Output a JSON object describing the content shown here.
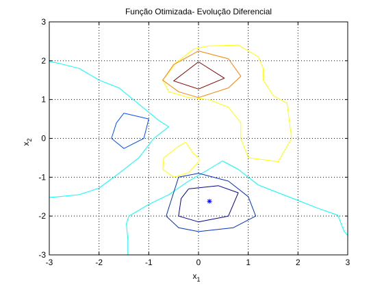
{
  "chart_data": {
    "type": "contour",
    "title": "Função Otimizada- Evolução Diferencial",
    "xlabel_base": "x",
    "xlabel_sub": "1",
    "ylabel_base": "x",
    "ylabel_sub": "2",
    "xlim": [
      -3,
      3
    ],
    "ylim": [
      -3,
      3
    ],
    "xticks": [
      -3,
      -2,
      -1,
      0,
      1,
      2,
      3
    ],
    "yticks": [
      -3,
      -2,
      -1,
      0,
      1,
      2,
      3
    ],
    "xtick_labels": [
      "-3",
      "-2",
      "-1",
      "0",
      "1",
      "2",
      "3"
    ],
    "ytick_labels": [
      "-3",
      "-2",
      "-1",
      "0",
      "1",
      "2",
      "3"
    ],
    "grid": true,
    "grid_style": "dotted",
    "contours": [
      {
        "color": "#00ffff",
        "points": [
          [
            -3.0,
            1.98
          ],
          [
            -2.8,
            1.93
          ],
          [
            -2.4,
            1.8
          ],
          [
            -2.0,
            1.5
          ],
          [
            -1.6,
            1.3
          ],
          [
            -1.2,
            0.88
          ],
          [
            -0.8,
            0.46
          ],
          [
            -0.6,
            0.3
          ],
          [
            -0.9,
            0.0
          ],
          [
            -1.2,
            -0.5
          ],
          [
            -1.6,
            -0.9
          ],
          [
            -2.0,
            -1.28
          ],
          [
            -2.4,
            -1.45
          ],
          [
            -2.8,
            -1.5
          ],
          [
            -3.0,
            -1.52
          ]
        ]
      },
      {
        "color": "#00ffff",
        "points": [
          [
            -1.42,
            -3.0
          ],
          [
            -1.42,
            -2.6
          ],
          [
            -1.45,
            -2.2
          ],
          [
            -1.4,
            -2.0
          ],
          [
            -1.0,
            -1.7
          ],
          [
            -0.6,
            -1.45
          ],
          [
            -0.2,
            -1.1
          ],
          [
            0.2,
            -0.8
          ],
          [
            0.48,
            -0.58
          ],
          [
            0.8,
            -0.8
          ],
          [
            1.2,
            -1.2
          ],
          [
            1.6,
            -1.4
          ],
          [
            2.0,
            -1.6
          ],
          [
            2.4,
            -1.8
          ],
          [
            2.8,
            -1.98
          ],
          [
            2.93,
            -2.4
          ],
          [
            3.0,
            -2.5
          ]
        ]
      },
      {
        "color": "#ffff00",
        "points": [
          [
            -0.26,
            -0.1
          ],
          [
            -0.4,
            -0.2
          ],
          [
            -0.7,
            -0.5
          ],
          [
            -0.72,
            -0.8
          ],
          [
            -0.5,
            -1.0
          ],
          [
            -0.2,
            -0.88
          ],
          [
            0.0,
            -0.6
          ],
          [
            0.0,
            -0.5
          ],
          [
            -0.1,
            -0.4
          ],
          [
            -0.26,
            -0.1
          ]
        ]
      },
      {
        "color": "#ffff00",
        "points": [
          [
            -0.72,
            1.5
          ],
          [
            -0.45,
            1.95
          ],
          [
            -0.1,
            2.3
          ],
          [
            0.2,
            2.38
          ],
          [
            0.8,
            2.4
          ],
          [
            1.2,
            2.1
          ],
          [
            1.3,
            1.8
          ],
          [
            1.3,
            1.5
          ],
          [
            1.5,
            1.1
          ],
          [
            1.78,
            0.9
          ],
          [
            1.87,
            0.0
          ],
          [
            1.6,
            -0.6
          ],
          [
            1.0,
            -0.5
          ],
          [
            0.85,
            0.0
          ],
          [
            0.85,
            0.4
          ],
          [
            0.6,
            0.8
          ],
          [
            0.2,
            1.0
          ],
          [
            -0.2,
            1.05
          ],
          [
            -0.6,
            1.2
          ],
          [
            -0.72,
            1.5
          ]
        ]
      },
      {
        "color": "#ff8000",
        "points": [
          [
            -0.5,
            1.9
          ],
          [
            0.0,
            2.25
          ],
          [
            0.6,
            2.05
          ],
          [
            0.85,
            1.6
          ],
          [
            0.6,
            1.3
          ],
          [
            0.0,
            1.05
          ],
          [
            -0.4,
            1.2
          ],
          [
            -0.72,
            1.5
          ],
          [
            -0.5,
            1.9
          ]
        ]
      },
      {
        "color": "#800000",
        "points": [
          [
            0.0,
            1.97
          ],
          [
            0.52,
            1.55
          ],
          [
            0.0,
            1.27
          ],
          [
            -0.5,
            1.48
          ],
          [
            0.0,
            1.97
          ]
        ]
      },
      {
        "color": "#0050ff",
        "points": [
          [
            -1.5,
            0.65
          ],
          [
            -1.0,
            0.5
          ],
          [
            -1.1,
            0.0
          ],
          [
            -1.5,
            -0.26
          ],
          [
            -1.75,
            0.0
          ],
          [
            -1.65,
            0.4
          ],
          [
            -1.5,
            0.65
          ]
        ]
      },
      {
        "color": "#0030c0",
        "points": [
          [
            -0.4,
            -1.0
          ],
          [
            0.0,
            -0.9
          ],
          [
            0.6,
            -1.1
          ],
          [
            1.0,
            -1.5
          ],
          [
            1.15,
            -2.0
          ],
          [
            0.7,
            -2.3
          ],
          [
            0.0,
            -2.4
          ],
          [
            -0.4,
            -2.3
          ],
          [
            -0.65,
            -2.0
          ],
          [
            -0.55,
            -1.6
          ],
          [
            -0.4,
            -1.0
          ]
        ]
      },
      {
        "color": "#00008b",
        "points": [
          [
            -0.2,
            -1.3
          ],
          [
            0.4,
            -1.22
          ],
          [
            0.8,
            -1.4
          ],
          [
            0.6,
            -2.0
          ],
          [
            0.0,
            -2.15
          ],
          [
            -0.4,
            -2.0
          ],
          [
            -0.35,
            -1.55
          ],
          [
            -0.2,
            -1.3
          ]
        ]
      }
    ],
    "marker": {
      "x": 0.22,
      "y": -1.62,
      "symbol": "*",
      "color": "#0000ff"
    }
  }
}
